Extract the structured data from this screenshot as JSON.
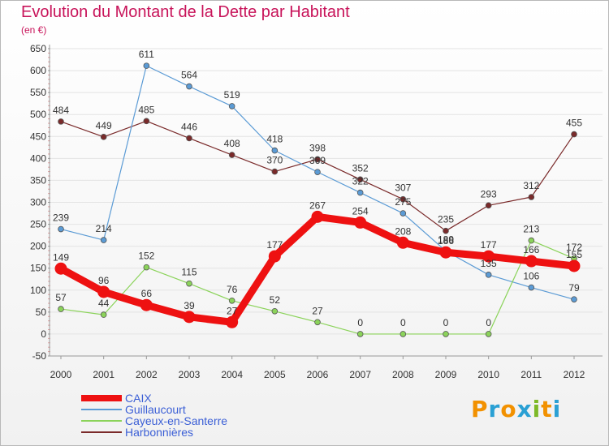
{
  "header": {
    "title": "Evolution du Montant de la Dette par Habitant",
    "subtitle": "(en €)"
  },
  "brand": {
    "name": "Proxiti",
    "letter_colors": [
      "#f29100",
      "#2aa0d4",
      "#f29100",
      "#2aa0d4",
      "#7db928",
      "#f29100",
      "#2aa0d4"
    ]
  },
  "chart_data": {
    "type": "line",
    "title": "Evolution du Montant de la Dette par Habitant",
    "subtitle": "(en €)",
    "xlabel": "",
    "ylabel": "",
    "x": [
      "2000",
      "2001",
      "2002",
      "2003",
      "2004",
      "2005",
      "2006",
      "2007",
      "2008",
      "2009",
      "2010",
      "2011",
      "2012"
    ],
    "ylim": [
      -50,
      650
    ],
    "yticks": [
      -50,
      0,
      50,
      100,
      150,
      200,
      250,
      300,
      350,
      400,
      450,
      500,
      550,
      600,
      650
    ],
    "grid": "horizontal",
    "legend_position": "bottom-left",
    "series": [
      {
        "name": "CAIX",
        "color": "#ee1111",
        "values": [
          149,
          96,
          66,
          39,
          27,
          177,
          267,
          254,
          208,
          186,
          177,
          166,
          155
        ]
      },
      {
        "name": "Guillaucourt",
        "color": "#5b9bd5",
        "values": [
          239,
          214,
          611,
          564,
          519,
          418,
          369,
          322,
          275,
          189,
          135,
          106,
          79
        ]
      },
      {
        "name": "Cayeux-en-Santerre",
        "color": "#8bd35a",
        "values": [
          57,
          44,
          152,
          115,
          76,
          52,
          27,
          0,
          0,
          0,
          0,
          213,
          172
        ]
      },
      {
        "name": "Harbonnières",
        "color": "#7a2a2a",
        "values": [
          484,
          449,
          485,
          446,
          408,
          370,
          398,
          352,
          307,
          235,
          293,
          312,
          455
        ]
      }
    ]
  }
}
